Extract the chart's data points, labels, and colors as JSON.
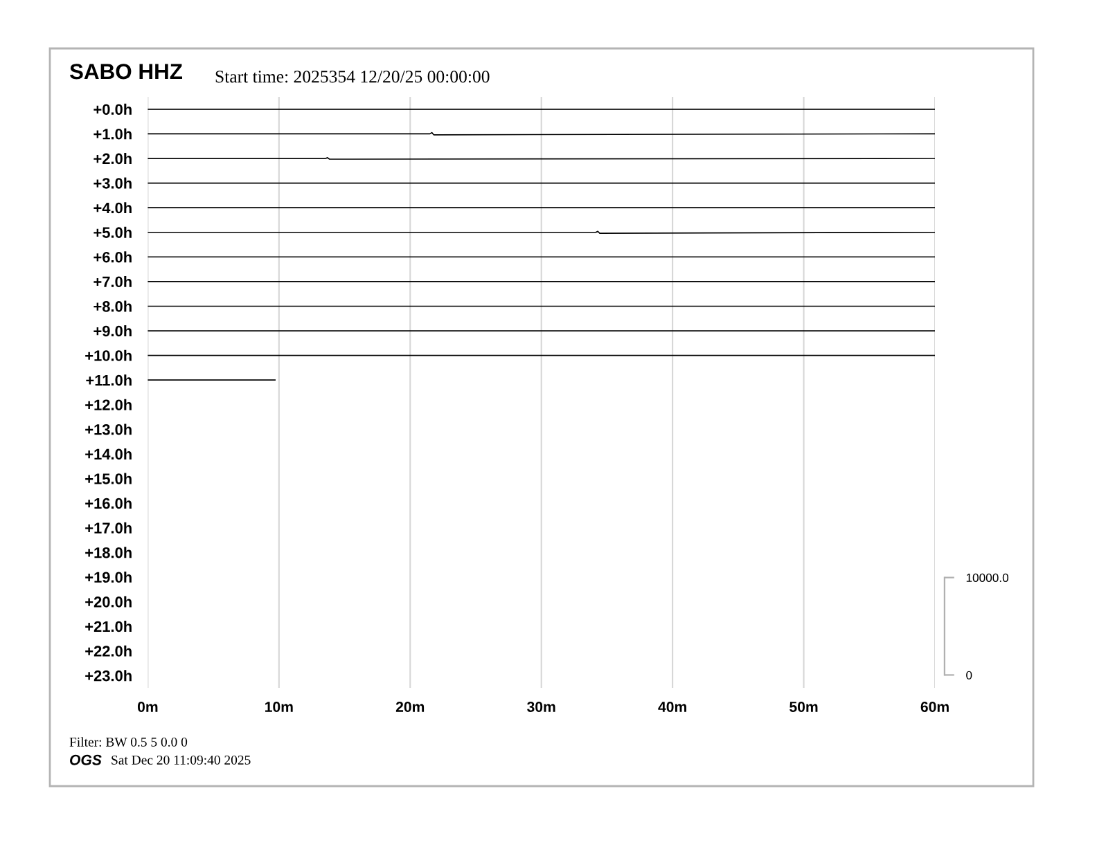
{
  "chart_data": {
    "type": "line",
    "title": "SABO HHZ",
    "subtitle": "Start time: 2025354 12/20/25 00:00:00",
    "annotations": [
      "Filter: BW 0.5 5 0.0 0",
      "OGS",
      "Sat Dec 20 11:09:40 2025"
    ],
    "xlim": [
      0,
      60
    ],
    "xticks": [
      {
        "value": 0,
        "label": "0m"
      },
      {
        "value": 10,
        "label": "10m"
      },
      {
        "value": 20,
        "label": "20m"
      },
      {
        "value": 30,
        "label": "30m"
      },
      {
        "value": 40,
        "label": "40m"
      },
      {
        "value": 50,
        "label": "50m"
      },
      {
        "value": 60,
        "label": "60m"
      }
    ],
    "ylim": [
      23.5,
      -0.5
    ],
    "yticks": [
      {
        "value": 0,
        "label": "+0.0h"
      },
      {
        "value": 1,
        "label": "+1.0h"
      },
      {
        "value": 2,
        "label": "+2.0h"
      },
      {
        "value": 3,
        "label": "+3.0h"
      },
      {
        "value": 4,
        "label": "+4.0h"
      },
      {
        "value": 5,
        "label": "+5.0h"
      },
      {
        "value": 6,
        "label": "+6.0h"
      },
      {
        "value": 7,
        "label": "+7.0h"
      },
      {
        "value": 8,
        "label": "+8.0h"
      },
      {
        "value": 9,
        "label": "+9.0h"
      },
      {
        "value": 10,
        "label": "+10.0h"
      },
      {
        "value": 11,
        "label": "+11.0h"
      },
      {
        "value": 12,
        "label": "+12.0h"
      },
      {
        "value": 13,
        "label": "+13.0h"
      },
      {
        "value": 14,
        "label": "+14.0h"
      },
      {
        "value": 15,
        "label": "+15.0h"
      },
      {
        "value": 16,
        "label": "+16.0h"
      },
      {
        "value": 17,
        "label": "+17.0h"
      },
      {
        "value": 18,
        "label": "+18.0h"
      },
      {
        "value": 19,
        "label": "+19.0h"
      },
      {
        "value": 20,
        "label": "+20.0h"
      },
      {
        "value": 21,
        "label": "+21.0h"
      },
      {
        "value": 22,
        "label": "+22.0h"
      },
      {
        "value": 23,
        "label": "+23.0h"
      }
    ],
    "y2lim": [
      -1320,
      59330
    ],
    "y2ticks": [
      0,
      {
        "value": 10000,
        "label": "10000.0"
      }
    ],
    "grid": "x",
    "line_style": "solid",
    "series": [
      {
        "color": "#000000",
        "x": [
          0,
          60
        ],
        "values": [
          0,
          0
        ]
      },
      {
        "color": "#000000",
        "x": [
          0,
          21.5,
          21.65,
          21.8,
          60
        ],
        "values": [
          1,
          1,
          0.95,
          1.04,
          1
        ]
      },
      {
        "color": "#000000",
        "x": [
          0,
          13.55,
          13.7,
          13.85,
          60
        ],
        "values": [
          2,
          2,
          1.97,
          2.03,
          2
        ]
      },
      {
        "color": "#000000",
        "x": [
          0,
          60
        ],
        "values": [
          3,
          3
        ]
      },
      {
        "color": "#000000",
        "x": [
          0,
          60
        ],
        "values": [
          4,
          4
        ]
      },
      {
        "color": "#000000",
        "x": [
          0,
          34.15,
          34.3,
          34.45,
          60
        ],
        "values": [
          5,
          5,
          4.96,
          5.04,
          5
        ]
      },
      {
        "color": "#000000",
        "x": [
          0,
          60
        ],
        "values": [
          6,
          6
        ]
      },
      {
        "color": "#000000",
        "x": [
          0,
          60
        ],
        "values": [
          7,
          7
        ]
      },
      {
        "color": "#000000",
        "x": [
          0,
          60
        ],
        "values": [
          8,
          8
        ]
      },
      {
        "color": "#000000",
        "x": [
          0,
          60
        ],
        "values": [
          9,
          9
        ]
      },
      {
        "color": "#000000",
        "x": [
          0,
          60
        ],
        "values": [
          10,
          10
        ]
      },
      {
        "color": "#000000",
        "x": [
          0,
          9.7
        ],
        "values": [
          11,
          11
        ]
      }
    ]
  }
}
